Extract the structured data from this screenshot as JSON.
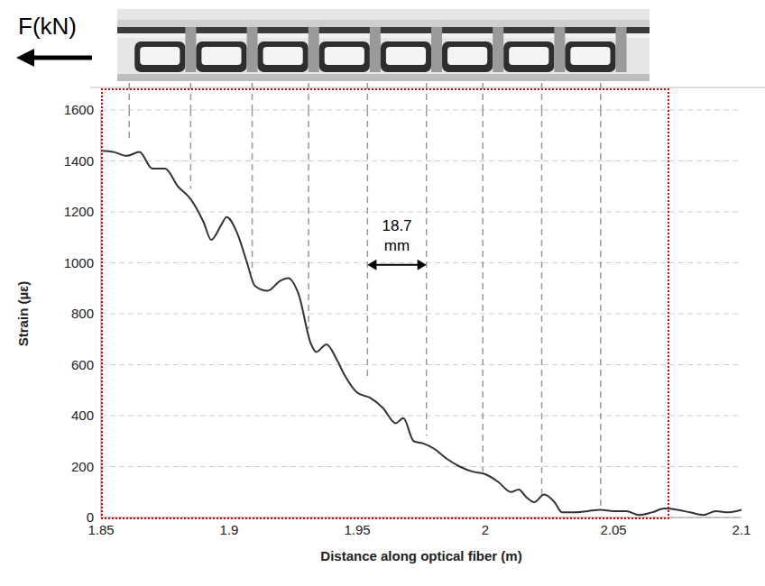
{
  "chart_data": {
    "type": "line",
    "force_label": "F(kN)",
    "xlabel": "Distance along optical fiber (m)",
    "ylabel": "Strain (µε)",
    "xlim": [
      1.85,
      2.1
    ],
    "xticks": [
      1.85,
      1.9,
      1.95,
      2,
      2.05,
      2.1
    ],
    "ylim": [
      0,
      1600
    ],
    "yticks": [
      0,
      200,
      400,
      600,
      800,
      1000,
      1200,
      1400,
      1600
    ],
    "grid": true,
    "color": "#333333",
    "x": [
      1.85,
      1.855,
      1.86,
      1.865,
      1.87,
      1.875,
      1.88,
      1.885,
      1.89,
      1.893,
      1.897,
      1.899,
      1.903,
      1.907,
      1.91,
      1.915,
      1.92,
      1.923,
      1.927,
      1.932,
      1.934,
      1.938,
      1.942,
      1.945,
      1.95,
      1.955,
      1.96,
      1.965,
      1.968,
      1.972,
      1.976,
      1.98,
      1.985,
      1.99,
      1.995,
      2.0,
      2.005,
      2.01,
      2.013,
      2.016,
      2.019,
      2.023,
      2.027,
      2.03,
      2.035,
      2.04,
      2.045,
      2.05,
      2.055,
      2.06,
      2.065,
      2.07,
      2.075,
      2.08,
      2.085,
      2.09,
      2.095,
      2.1
    ],
    "values": [
      1440,
      1435,
      1420,
      1435,
      1370,
      1370,
      1300,
      1250,
      1160,
      1090,
      1150,
      1180,
      1120,
      1000,
      910,
      890,
      930,
      940,
      880,
      680,
      650,
      680,
      620,
      560,
      490,
      470,
      430,
      370,
      390,
      300,
      290,
      270,
      230,
      200,
      180,
      170,
      140,
      100,
      110,
      80,
      60,
      90,
      60,
      20,
      20,
      25,
      30,
      25,
      25,
      10,
      20,
      35,
      30,
      20,
      10,
      25,
      20,
      30
    ],
    "rib_lines": [
      {
        "x": 1.861,
        "y": 1480
      },
      {
        "x": 1.885,
        "y": 1290
      },
      {
        "x": 1.909,
        "y": 960
      },
      {
        "x": 1.931,
        "y": 740
      },
      {
        "x": 1.954,
        "y": 540
      },
      {
        "x": 1.977,
        "y": 320
      },
      {
        "x": 1.999,
        "y": 180
      },
      {
        "x": 2.022,
        "y": 70
      },
      {
        "x": 2.045,
        "y": 40
      }
    ],
    "annotation": {
      "text": "18.7 mm",
      "x": [
        1.954,
        1.977
      ]
    },
    "highlight_x": [
      1.85,
      2.072
    ]
  }
}
